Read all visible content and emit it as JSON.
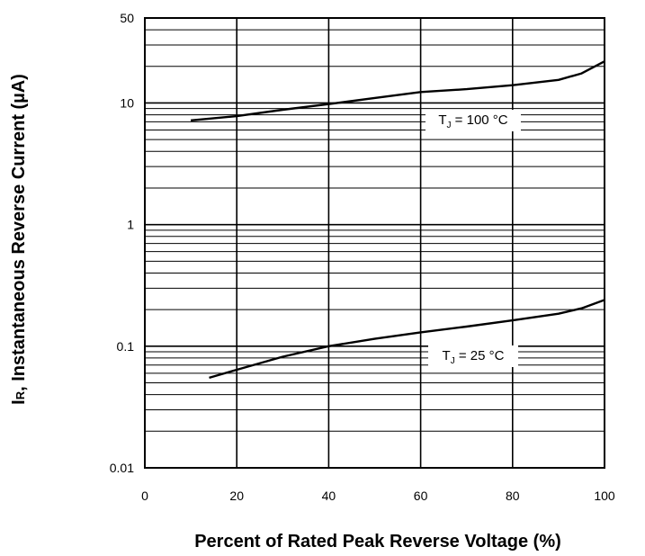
{
  "chart_data": {
    "type": "line",
    "title": "",
    "xlabel": "Percent of Rated Peak Reverse Voltage (%)",
    "ylabel_prefix": "I",
    "ylabel_sub": "R",
    "ylabel_rest": ", Instantaneous Reverse Current (µA)",
    "xlim": [
      0,
      100
    ],
    "ylim": [
      0.01,
      50
    ],
    "yscale": "log",
    "grid": true,
    "x_ticks": [
      "0",
      "20",
      "40",
      "60",
      "80",
      "100"
    ],
    "y_ticks": [
      "0.01",
      "0.1",
      "1",
      "10",
      "50"
    ],
    "series": [
      {
        "label_prefix": "T",
        "label_sub": "J",
        "label_rest": " = 100 °C",
        "x": [
          10,
          20,
          30,
          40,
          50,
          60,
          70,
          80,
          90,
          95,
          100
        ],
        "y": [
          7.2,
          7.8,
          8.8,
          9.8,
          11.0,
          12.3,
          13.0,
          14.0,
          15.5,
          17.5,
          22.0
        ]
      },
      {
        "label_prefix": "T",
        "label_sub": "J",
        "label_rest": " = 25 °C",
        "x": [
          14,
          20,
          30,
          40,
          50,
          60,
          70,
          80,
          90,
          95,
          100
        ],
        "y": [
          0.055,
          0.064,
          0.082,
          0.1,
          0.115,
          0.13,
          0.145,
          0.163,
          0.185,
          0.205,
          0.24
        ]
      }
    ]
  }
}
